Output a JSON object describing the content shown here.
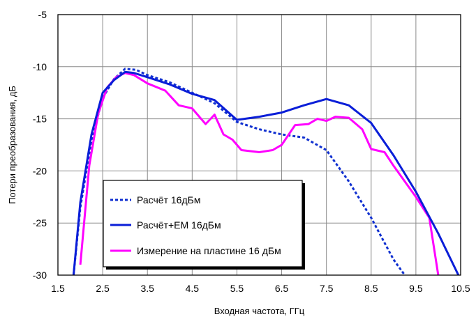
{
  "chart_data": {
    "type": "line",
    "title": "",
    "xlabel": "Входная частота, ГГц",
    "ylabel": "Потери преобразования, дБ",
    "xlim": [
      1.5,
      10.5
    ],
    "ylim": [
      -30,
      -5
    ],
    "xticks": [
      "1.5",
      "2.5",
      "3.5",
      "4.5",
      "5.5",
      "6.5",
      "7.5",
      "8.5",
      "9.5",
      "10.5"
    ],
    "yticks": [
      "-5",
      "-10",
      "-15",
      "-20",
      "-25",
      "-30"
    ],
    "grid": true,
    "legend_position": "bottom-left",
    "series": [
      {
        "name": "Расчёт 16дБм",
        "color": "#1030d0",
        "style": "dotted",
        "x": [
          1.85,
          2.0,
          2.25,
          2.5,
          2.75,
          3.0,
          3.25,
          3.5,
          4.0,
          4.5,
          5.0,
          5.5,
          6.0,
          6.5,
          7.0,
          7.5,
          8.0,
          8.5,
          9.0,
          9.25
        ],
        "y": [
          -30,
          -23.5,
          -17.0,
          -13.0,
          -11.2,
          -10.2,
          -10.3,
          -10.8,
          -11.5,
          -12.5,
          -13.5,
          -15.3,
          -16.0,
          -16.5,
          -16.8,
          -18.0,
          -21.0,
          -24.5,
          -28.5,
          -30
        ]
      },
      {
        "name": "Расчёт+EM 16дБм",
        "color": "#0a1ed8",
        "style": "solid",
        "x": [
          1.85,
          2.0,
          2.25,
          2.5,
          2.75,
          3.0,
          3.2,
          3.5,
          4.0,
          4.5,
          5.0,
          5.5,
          6.0,
          6.5,
          7.0,
          7.5,
          8.0,
          8.5,
          9.0,
          9.5,
          10.0,
          10.45
        ],
        "y": [
          -30,
          -23.0,
          -16.5,
          -12.5,
          -11.3,
          -10.5,
          -10.6,
          -11.0,
          -11.7,
          -12.6,
          -13.2,
          -15.1,
          -14.8,
          -14.4,
          -13.7,
          -13.1,
          -13.7,
          -15.4,
          -18.5,
          -22.0,
          -26.0,
          -30
        ]
      },
      {
        "name": "Измерение на пластине 16 дБм",
        "color": "#ff00ff",
        "style": "solid",
        "x": [
          2.0,
          2.2,
          2.4,
          2.6,
          2.8,
          3.0,
          3.2,
          3.5,
          3.9,
          4.2,
          4.5,
          4.8,
          5.0,
          5.2,
          5.4,
          5.6,
          6.0,
          6.3,
          6.5,
          6.8,
          7.1,
          7.3,
          7.5,
          7.7,
          8.0,
          8.3,
          8.5,
          8.8,
          9.0,
          9.5,
          9.8,
          10.0
        ],
        "y": [
          -29.0,
          -19.5,
          -14.5,
          -12.0,
          -11.0,
          -10.6,
          -10.8,
          -11.6,
          -12.3,
          -13.7,
          -14.0,
          -15.5,
          -14.6,
          -16.5,
          -17.0,
          -18.0,
          -18.2,
          -18.0,
          -17.5,
          -15.6,
          -15.5,
          -15.0,
          -15.2,
          -14.8,
          -14.9,
          -16.0,
          -17.9,
          -18.2,
          -19.5,
          -22.5,
          -24.5,
          -30
        ]
      }
    ]
  }
}
